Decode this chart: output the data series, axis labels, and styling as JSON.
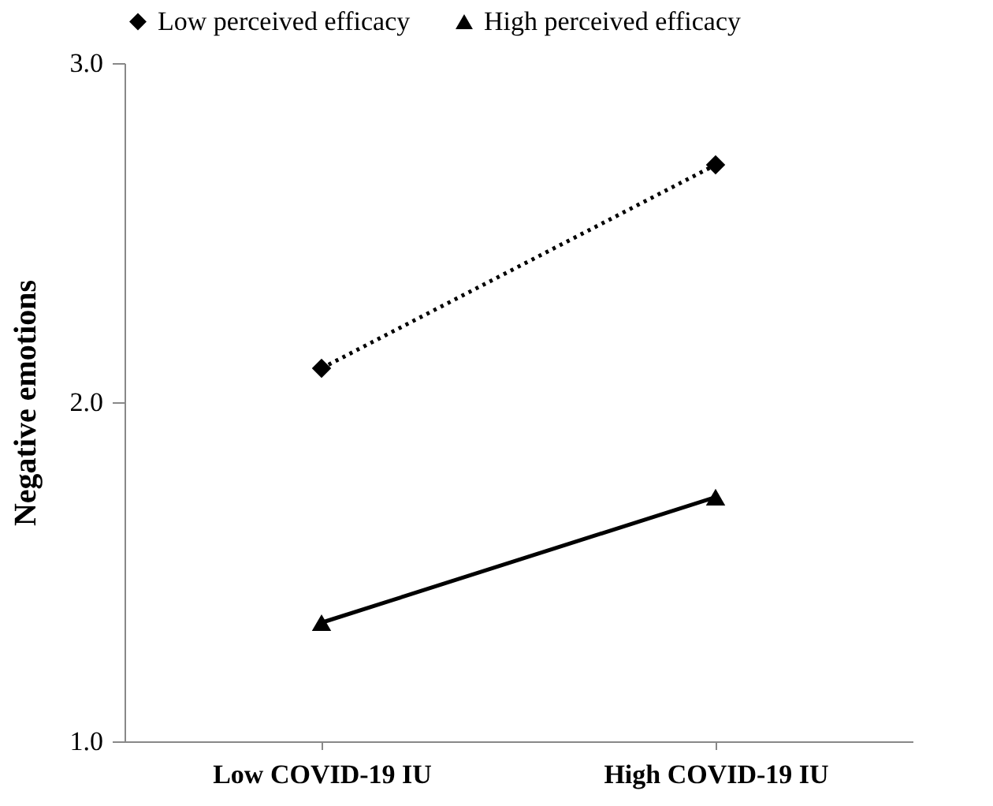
{
  "chart_data": {
    "type": "line",
    "ylabel": "Negative emotions",
    "categories": [
      "Low COVID-19 IU",
      "High COVID-19 IU"
    ],
    "series": [
      {
        "name": "Low perceived efficacy",
        "color": "#000000",
        "values": [
          2.1,
          2.7
        ],
        "marker": "diamond",
        "line_style": "dotted"
      },
      {
        "name": "High perceived efficacy",
        "color": "#000000",
        "values": [
          1.35,
          1.72
        ],
        "marker": "triangle",
        "line_style": "solid"
      }
    ],
    "ylim": [
      1,
      3
    ],
    "yticks": [
      {
        "value": 1,
        "label": "1.0"
      },
      {
        "value": 2,
        "label": "2.0"
      },
      {
        "value": 3,
        "label": "3.0"
      }
    ],
    "grid": false,
    "legend": "top"
  }
}
